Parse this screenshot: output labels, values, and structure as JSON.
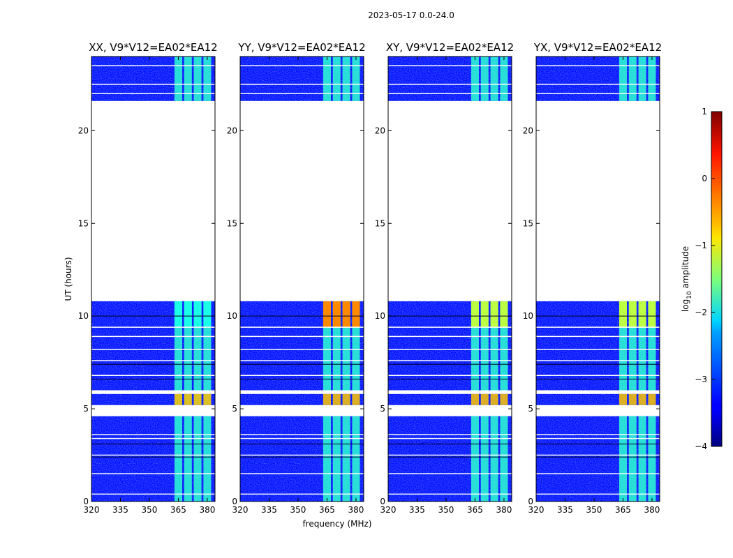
{
  "chart_data": {
    "type": "heatmap",
    "suptitle": "2023-05-17 0.0-24.0",
    "xlabel": "frequency (MHz)",
    "ylabel": "UT (hours)",
    "xlim": [
      320,
      384
    ],
    "ylim": [
      0,
      24
    ],
    "xticks": [
      "320",
      "335",
      "350",
      "365",
      "380"
    ],
    "yticks": [
      "0",
      "5",
      "10",
      "15",
      "20"
    ],
    "colorbar": {
      "label_main": "log",
      "label_sub": "10",
      "label_tail": " amplitude",
      "range": [
        -4,
        1
      ],
      "ticks": [
        "1",
        "0",
        "−1",
        "−2",
        "−3",
        "−4"
      ]
    },
    "panels": [
      {
        "title": "XX, V9*V12=EA02*EA12",
        "level_5h": -0.7,
        "level_10h": -2.0
      },
      {
        "title": "YY, V9*V12=EA02*EA12",
        "level_5h": -0.6,
        "level_10h": -0.3
      },
      {
        "title": "XY, V9*V12=EA02*EA12",
        "level_5h": -0.6,
        "level_10h": -1.2
      },
      {
        "title": "YX, V9*V12=EA02*EA12",
        "level_5h": -0.6,
        "level_10h": -1.2
      }
    ],
    "data_blocks_hours": [
      [
        0,
        4.6
      ],
      [
        5.2,
        5.8
      ],
      [
        6.0,
        10.8
      ],
      [
        21.6,
        24.0
      ]
    ],
    "band_channels_mhz": [
      365,
      370,
      375,
      380
    ],
    "background_level": -3.3,
    "band_level": -1.9
  }
}
